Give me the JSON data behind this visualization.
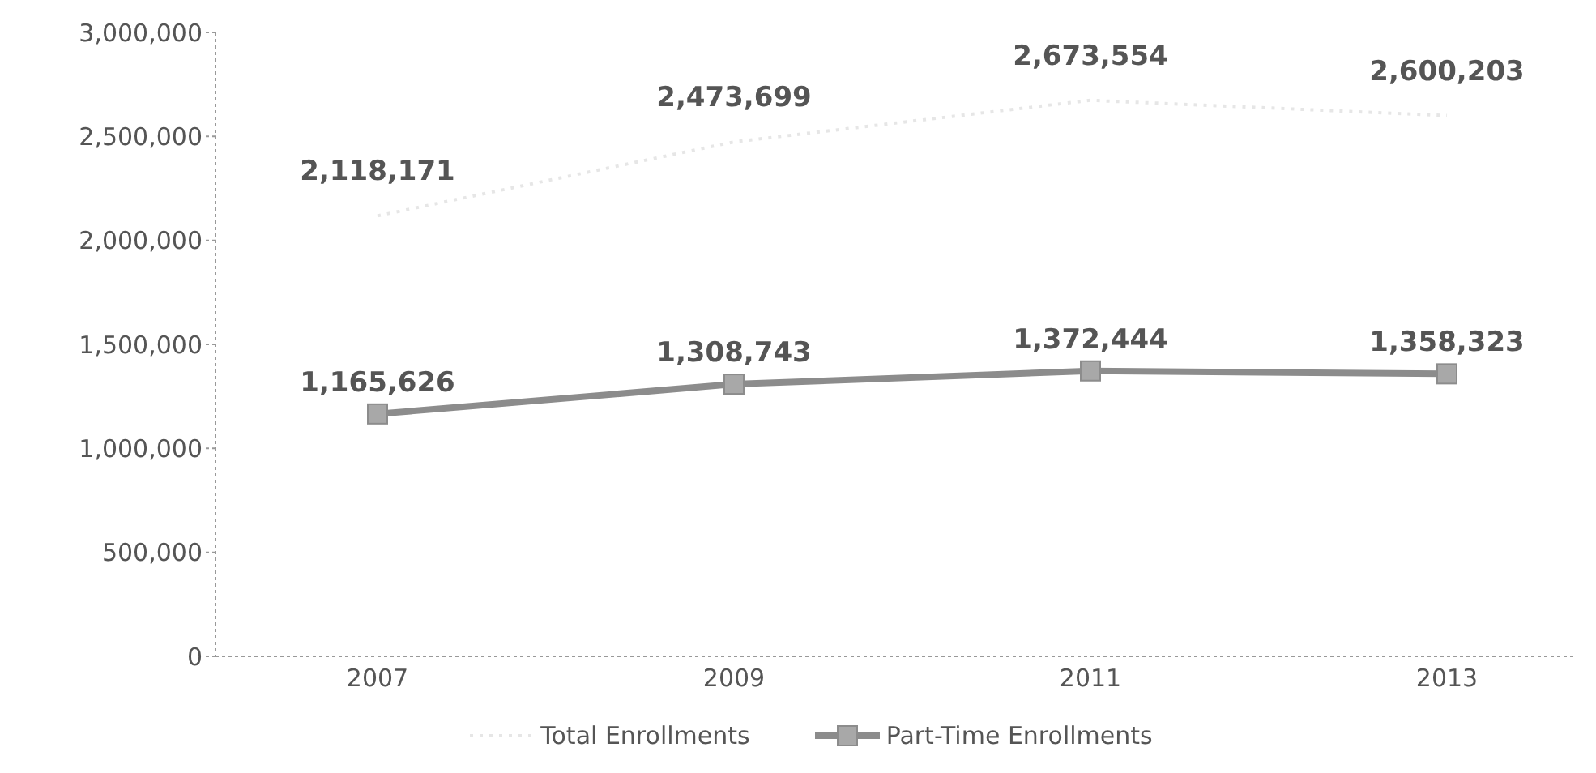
{
  "chart_data": {
    "type": "line",
    "categories": [
      "2007",
      "2009",
      "2011",
      "2013"
    ],
    "series": [
      {
        "name": "Total Enrollments",
        "color": "#e6e6e6",
        "values": [
          2118171,
          2473699,
          2673554,
          2600203
        ],
        "value_labels": [
          "2,118,171",
          "2,473,699",
          "2,673,554",
          "2,600,203"
        ],
        "marker": "none",
        "line_style": "dotted"
      },
      {
        "name": "Part-Time Enrollments",
        "color": "#8c8c8c",
        "values": [
          1165626,
          1308743,
          1372444,
          1358323
        ],
        "value_labels": [
          "1,165,626",
          "1,308,743",
          "1,372,444",
          "1,358,323"
        ],
        "marker": "square",
        "line_style": "solid"
      }
    ],
    "ylim": [
      0,
      3000000
    ],
    "yticks": [
      0,
      {
        "value": 500000,
        "label": "500,000"
      },
      {
        "value": 1000000,
        "label": "1,000,000"
      },
      {
        "value": 1500000,
        "label": "1,500,000"
      },
      {
        "value": 2000000,
        "label": "2,000,000"
      },
      {
        "value": 2500000,
        "label": "2,500,000"
      },
      {
        "value": 3000000,
        "label": "3,000,000"
      }
    ],
    "grid": false,
    "legend": "bottom"
  }
}
